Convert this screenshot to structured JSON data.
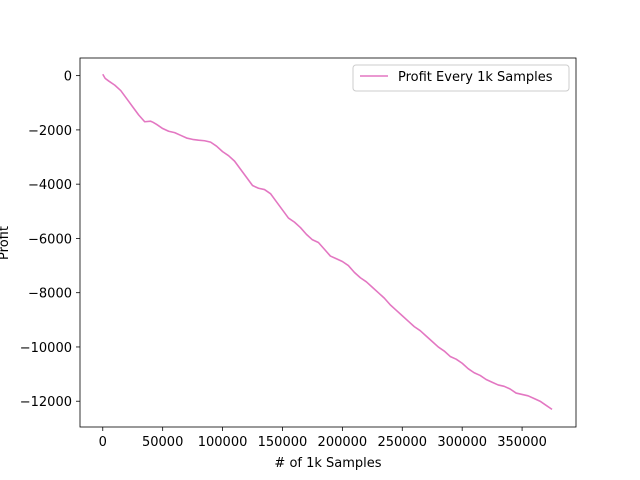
{
  "chart_data": {
    "type": "line",
    "title": "",
    "xlabel": "# of 1k Samples",
    "ylabel": "Profit",
    "xlim": [
      -19000,
      395000
    ],
    "ylim": [
      -12950,
      650
    ],
    "xticks": [
      0,
      50000,
      100000,
      150000,
      200000,
      250000,
      300000,
      350000
    ],
    "xtick_labels": [
      "0",
      "50000",
      "100000",
      "150000",
      "200000",
      "250000",
      "300000",
      "350000"
    ],
    "yticks": [
      0,
      -2000,
      -4000,
      -6000,
      -8000,
      -10000,
      -12000
    ],
    "ytick_labels": [
      "0",
      "−2000",
      "−4000",
      "−6000",
      "−8000",
      "−10000",
      "−12000"
    ],
    "grid": false,
    "legend_position": "upper right",
    "colors": {
      "series": "#e377c2",
      "axis": "#000000",
      "background": "#ffffff"
    },
    "series": [
      {
        "name": "Profit Every 1k Samples",
        "x": [
          0,
          2000,
          5000,
          10000,
          15000,
          20000,
          25000,
          30000,
          35000,
          40000,
          42000,
          45000,
          50000,
          55000,
          60000,
          65000,
          70000,
          75000,
          80000,
          85000,
          90000,
          95000,
          100000,
          105000,
          110000,
          115000,
          120000,
          125000,
          130000,
          135000,
          140000,
          145000,
          150000,
          155000,
          160000,
          165000,
          170000,
          175000,
          180000,
          185000,
          190000,
          195000,
          200000,
          205000,
          210000,
          215000,
          220000,
          225000,
          230000,
          235000,
          240000,
          245000,
          250000,
          255000,
          260000,
          265000,
          270000,
          275000,
          280000,
          285000,
          290000,
          295000,
          300000,
          305000,
          310000,
          315000,
          320000,
          325000,
          330000,
          335000,
          340000,
          345000,
          350000,
          355000,
          360000,
          365000,
          370000,
          375000
        ],
        "y": [
          50,
          -100,
          -200,
          -350,
          -550,
          -850,
          -1150,
          -1450,
          -1700,
          -1680,
          -1720,
          -1800,
          -1950,
          -2050,
          -2100,
          -2200,
          -2300,
          -2350,
          -2380,
          -2400,
          -2450,
          -2600,
          -2800,
          -2950,
          -3150,
          -3450,
          -3750,
          -4050,
          -4150,
          -4200,
          -4350,
          -4650,
          -4950,
          -5250,
          -5400,
          -5600,
          -5850,
          -6050,
          -6150,
          -6400,
          -6650,
          -6750,
          -6850,
          -7000,
          -7250,
          -7450,
          -7600,
          -7800,
          -8000,
          -8200,
          -8450,
          -8650,
          -8850,
          -9050,
          -9250,
          -9400,
          -9600,
          -9800,
          -10000,
          -10150,
          -10350,
          -10450,
          -10600,
          -10800,
          -10950,
          -11050,
          -11200,
          -11300,
          -11400,
          -11450,
          -11550,
          -11700,
          -11750,
          -11800,
          -11900,
          -12000,
          -12150,
          -12300
        ]
      }
    ]
  }
}
